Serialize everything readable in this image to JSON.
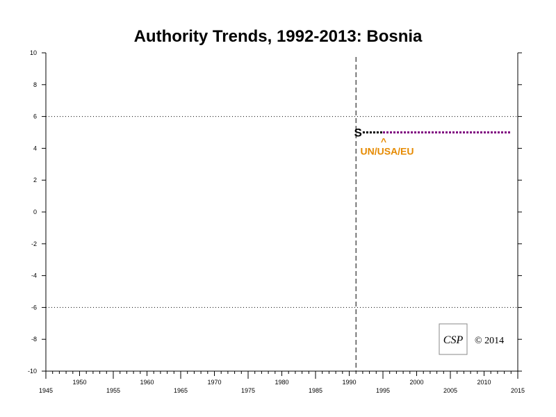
{
  "chart_data": {
    "type": "line",
    "title": "Authority Trends, 1992-2013: Bosnia",
    "xlabel": "",
    "ylabel": "",
    "xlim": [
      1945,
      2015
    ],
    "ylim": [
      -10,
      10
    ],
    "x_tick_labels_lower": [
      "1945",
      "1955",
      "1965",
      "1975",
      "1985",
      "1995",
      "2005",
      "2015"
    ],
    "x_tick_labels_upper": [
      "1950",
      "1960",
      "1970",
      "1980",
      "1990",
      "2000",
      "2010"
    ],
    "y_tick_labels": [
      "10",
      "8",
      "6",
      "4",
      "2",
      "0",
      "-2",
      "-4",
      "-6",
      "-8",
      "-10"
    ],
    "reference_lines_y": [
      6,
      -6
    ],
    "start_marker_year": 1991,
    "series": [
      {
        "x": [
          1992,
          1995
        ],
        "y": [
          5,
          5
        ],
        "color": "#000000",
        "style": "dashed"
      },
      {
        "x": [
          1995,
          2014
        ],
        "y": [
          5,
          5
        ],
        "color": "#800080",
        "style": "dashed"
      }
    ],
    "annotations": {
      "s_marker": {
        "text": "S",
        "x": 1992,
        "y": 5
      },
      "caret": {
        "text": "^",
        "x": 1995,
        "y": 5
      },
      "intervention": {
        "text": "UN/USA/EU",
        "x": 1995,
        "y": 5
      }
    },
    "colors": {
      "intervention": "#e68a00",
      "series_purple": "#800080"
    }
  },
  "copyright": "© 2014",
  "logo_text": "CSP"
}
